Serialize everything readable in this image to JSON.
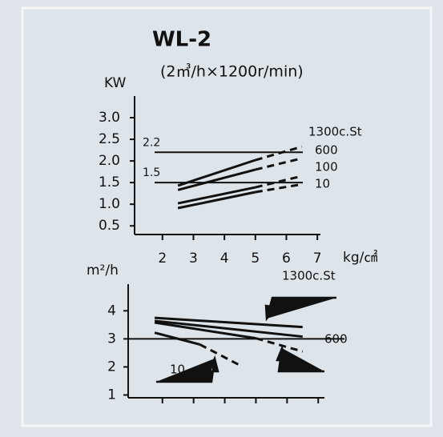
{
  "chart_data": [
    {
      "type": "line",
      "title": "WL-2",
      "subtitle": "(2㎥/h×1200r/min)",
      "ylabel": "KW",
      "xlabel": "kg/㎠",
      "xlim": [
        1.1,
        7.1
      ],
      "xticks": [
        2,
        3,
        4,
        5,
        6,
        7
      ],
      "ylim": [
        0.3,
        3.5
      ],
      "yticks": [
        {
          "value": 0.5,
          "label": "0.5"
        },
        {
          "value": 1.0,
          "label": "1.0"
        },
        {
          "value": 1.5,
          "label": "1.5"
        },
        {
          "value": 2.0,
          "label": "2.0"
        },
        {
          "value": 2.5,
          "label": "2.5"
        },
        {
          "value": 3.0,
          "label": "3.0"
        }
      ],
      "reference_lines": [
        2.2,
        1.5
      ],
      "reference_labels": true,
      "series": [
        {
          "name": "1300c.St",
          "color": "#111111",
          "x": [
            2.5,
            5.0,
            6.5
          ],
          "values": [
            1.43,
            2.02,
            2.33
          ],
          "dashed_after": 1
        },
        {
          "name": "600",
          "color": "#111111",
          "x": [
            2.5,
            5.0,
            6.5
          ],
          "values": [
            1.33,
            1.8,
            2.06
          ],
          "dashed_after": 1
        },
        {
          "name": "100",
          "color": "#111111",
          "x": [
            2.5,
            5.0,
            6.5
          ],
          "values": [
            1.02,
            1.39,
            1.65
          ],
          "dashed_after": 1
        },
        {
          "name": "10",
          "color": "#111111",
          "x": [
            2.5,
            5.0,
            6.5
          ],
          "values": [
            0.91,
            1.28,
            1.46
          ],
          "dashed_after": 1
        }
      ]
    },
    {
      "type": "line",
      "ylabel": "m²/h",
      "xlim": [
        0.9,
        7.2
      ],
      "xticks": [
        2,
        3,
        4,
        5,
        6,
        7
      ],
      "ylim": [
        0.9,
        4.95
      ],
      "yticks": [
        1,
        2,
        3,
        4
      ],
      "reference_lines": [
        3
      ],
      "reference_labels": false,
      "series": [
        {
          "name": "1300c.St",
          "color": "#111111",
          "x": [
            1.75,
            6.5
          ],
          "values": [
            3.75,
            3.42
          ]
        },
        {
          "name": "600",
          "color": "#111111",
          "x": [
            1.75,
            6.5
          ],
          "values": [
            3.64,
            3.08
          ]
        },
        {
          "name": "100",
          "color": "#111111",
          "x": [
            1.75,
            5.0,
            6.5
          ],
          "values": [
            3.58,
            3.02,
            2.55
          ],
          "dashed_after": 1
        },
        {
          "name": "10",
          "color": "#111111",
          "x": [
            1.75,
            3.2,
            4.5
          ],
          "values": [
            3.22,
            2.8,
            2.05
          ],
          "dashed_after": 1
        }
      ]
    }
  ]
}
